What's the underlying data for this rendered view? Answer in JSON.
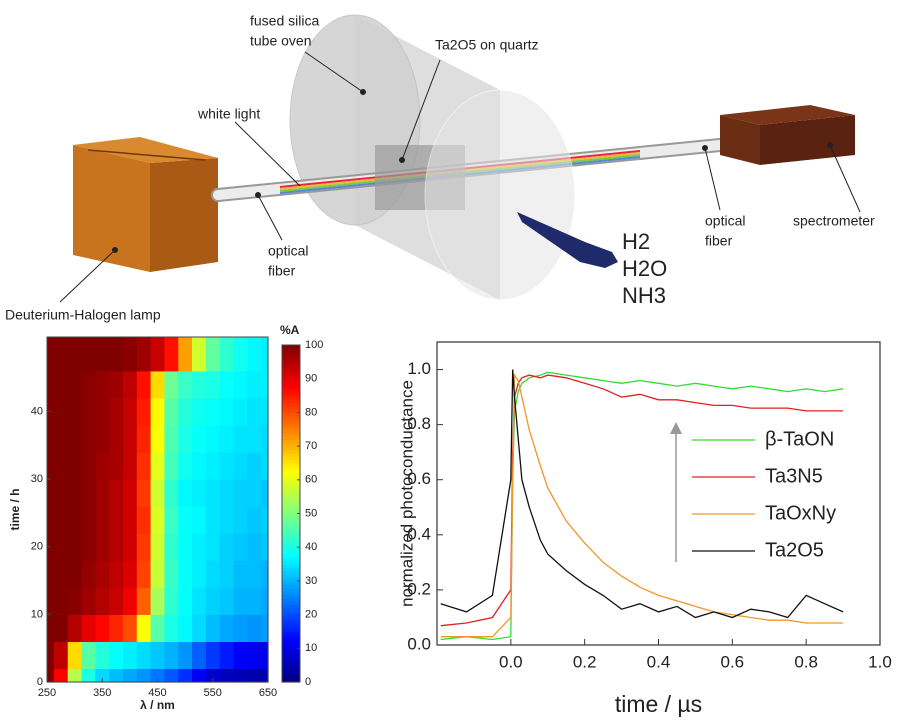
{
  "diagram": {
    "labels": [
      {
        "lines": [
          "fused silica",
          "tube oven"
        ]
      },
      {
        "lines": [
          "white light"
        ]
      },
      {
        "lines": [
          "Ta2O5 on quartz"
        ]
      },
      {
        "lines": [
          "optical",
          "fiber"
        ]
      },
      {
        "lines": [
          "optical",
          "fiber"
        ]
      },
      {
        "lines": [
          "spectrometer"
        ]
      },
      {
        "lines": [
          "Deuterium-Halogen lamp"
        ]
      },
      {
        "lines": [
          "H2",
          "H2O",
          "NH3"
        ]
      }
    ]
  },
  "chart_data": [
    {
      "type": "heatmap",
      "x": [
        250,
        275,
        300,
        325,
        350,
        375,
        400,
        425,
        450,
        475,
        500,
        525,
        550,
        575,
        600,
        625,
        650
      ],
      "y": [
        0,
        4,
        8,
        12,
        16,
        20,
        24,
        28,
        32,
        36,
        40,
        44,
        48
      ],
      "z": [
        [
          100,
          88,
          55,
          40,
          34,
          31,
          29,
          27,
          24,
          21,
          17,
          12,
          8,
          6,
          5,
          4,
          5
        ],
        [
          100,
          94,
          66,
          46,
          41,
          38,
          36,
          34,
          32,
          30,
          27,
          22,
          18,
          15,
          12,
          11,
          10
        ],
        [
          100,
          100,
          95,
          90,
          87,
          84,
          80,
          62,
          46,
          40,
          37,
          34,
          31,
          29,
          28,
          27,
          28
        ],
        [
          100,
          100,
          99,
          97,
          95,
          93,
          89,
          78,
          54,
          42,
          38,
          35,
          33,
          32,
          30,
          30,
          29
        ],
        [
          100,
          100,
          100,
          98,
          96,
          94,
          91,
          81,
          57,
          43,
          38,
          36,
          34,
          33,
          31,
          31,
          30
        ],
        [
          100,
          100,
          100,
          99,
          97,
          95,
          92,
          82,
          58,
          42,
          38,
          36,
          35,
          33,
          32,
          31,
          32
        ],
        [
          100,
          100,
          100,
          99,
          97,
          95,
          92,
          83,
          59,
          43,
          38,
          37,
          35,
          34,
          33,
          32,
          33
        ],
        [
          100,
          100,
          100,
          99,
          97,
          95,
          92,
          82,
          58,
          42,
          37,
          36,
          35,
          34,
          33,
          33,
          32
        ],
        [
          100,
          100,
          100,
          99,
          97,
          96,
          93,
          83,
          60,
          44,
          39,
          37,
          36,
          35,
          34,
          33,
          34
        ],
        [
          100,
          100,
          100,
          99,
          98,
          96,
          93,
          84,
          62,
          45,
          40,
          38,
          37,
          36,
          35,
          35,
          34
        ],
        [
          100,
          100,
          100,
          99,
          98,
          96,
          93,
          85,
          63,
          46,
          41,
          39,
          38,
          37,
          36,
          35,
          35
        ],
        [
          100,
          100,
          100,
          99,
          98,
          97,
          94,
          86,
          66,
          48,
          43,
          41,
          40,
          38,
          37,
          36,
          36
        ],
        [
          100,
          100,
          100,
          100,
          100,
          100,
          99,
          97,
          93,
          86,
          72,
          58,
          47,
          42,
          39,
          37,
          36
        ]
      ],
      "xlim": [
        250,
        650
      ],
      "ylim": [
        0,
        51
      ],
      "xticks": [
        250,
        350,
        450,
        550,
        650
      ],
      "yticks": [
        0,
        10,
        20,
        30,
        40
      ],
      "xlabel": "λ / nm",
      "ylabel": "time / h",
      "colormap": "jet",
      "colorbar": {
        "title": "%A",
        "clim": [
          0,
          100
        ],
        "ticks": [
          0,
          10,
          20,
          30,
          40,
          50,
          60,
          70,
          80,
          90,
          100
        ]
      }
    },
    {
      "type": "line",
      "x": [
        -0.19,
        -0.12,
        -0.05,
        0,
        0.005,
        0.01,
        0.02,
        0.03,
        0.05,
        0.08,
        0.1,
        0.15,
        0.2,
        0.25,
        0.3,
        0.35,
        0.4,
        0.45,
        0.5,
        0.55,
        0.6,
        0.65,
        0.7,
        0.75,
        0.8,
        0.85,
        0.9
      ],
      "series": [
        {
          "name": "β-TaON",
          "color": "#33dd33",
          "values": [
            0.02,
            0.03,
            0.02,
            0.03,
            0.6,
            0.85,
            0.92,
            0.95,
            0.97,
            0.98,
            0.99,
            0.98,
            0.97,
            0.96,
            0.95,
            0.96,
            0.95,
            0.94,
            0.95,
            0.94,
            0.93,
            0.94,
            0.93,
            0.92,
            0.93,
            0.92,
            0.93
          ]
        },
        {
          "name": "Ta3N5",
          "color": "#e02020",
          "values": [
            0.07,
            0.08,
            0.1,
            0.2,
            0.7,
            0.9,
            0.95,
            0.97,
            0.98,
            0.97,
            0.98,
            0.97,
            0.95,
            0.93,
            0.9,
            0.91,
            0.89,
            0.89,
            0.88,
            0.87,
            0.87,
            0.86,
            0.86,
            0.86,
            0.85,
            0.85,
            0.85
          ]
        },
        {
          "name": "TaOxNy",
          "color": "#f0962a",
          "values": [
            0.03,
            0.03,
            0.03,
            0.1,
            0.6,
            0.98,
            0.96,
            0.9,
            0.78,
            0.65,
            0.57,
            0.45,
            0.37,
            0.3,
            0.25,
            0.21,
            0.18,
            0.16,
            0.14,
            0.12,
            0.11,
            0.1,
            0.09,
            0.09,
            0.08,
            0.08,
            0.08
          ]
        },
        {
          "name": "Ta2O5",
          "color": "#111111",
          "values": [
            0.15,
            0.12,
            0.18,
            0.6,
            1.0,
            0.9,
            0.75,
            0.6,
            0.5,
            0.38,
            0.33,
            0.27,
            0.22,
            0.18,
            0.13,
            0.15,
            0.12,
            0.14,
            0.1,
            0.12,
            0.1,
            0.13,
            0.12,
            0.1,
            0.18,
            0.15,
            0.12
          ]
        }
      ],
      "xlim": [
        -0.2,
        1.0
      ],
      "ylim": [
        0,
        1.1
      ],
      "xticks": [
        {
          "value": 0,
          "label": "0.0"
        },
        0.2,
        0.4,
        0.6,
        0.8,
        {
          "value": 1,
          "label": "1.0"
        }
      ],
      "yticks": [
        {
          "value": 0,
          "label": "0.0"
        },
        0.2,
        0.4,
        0.6,
        0.8,
        {
          "value": 1,
          "label": "1.0"
        }
      ],
      "xlabel": "time / µs",
      "ylabel": "normalized photoconductance",
      "legend": "right"
    }
  ]
}
